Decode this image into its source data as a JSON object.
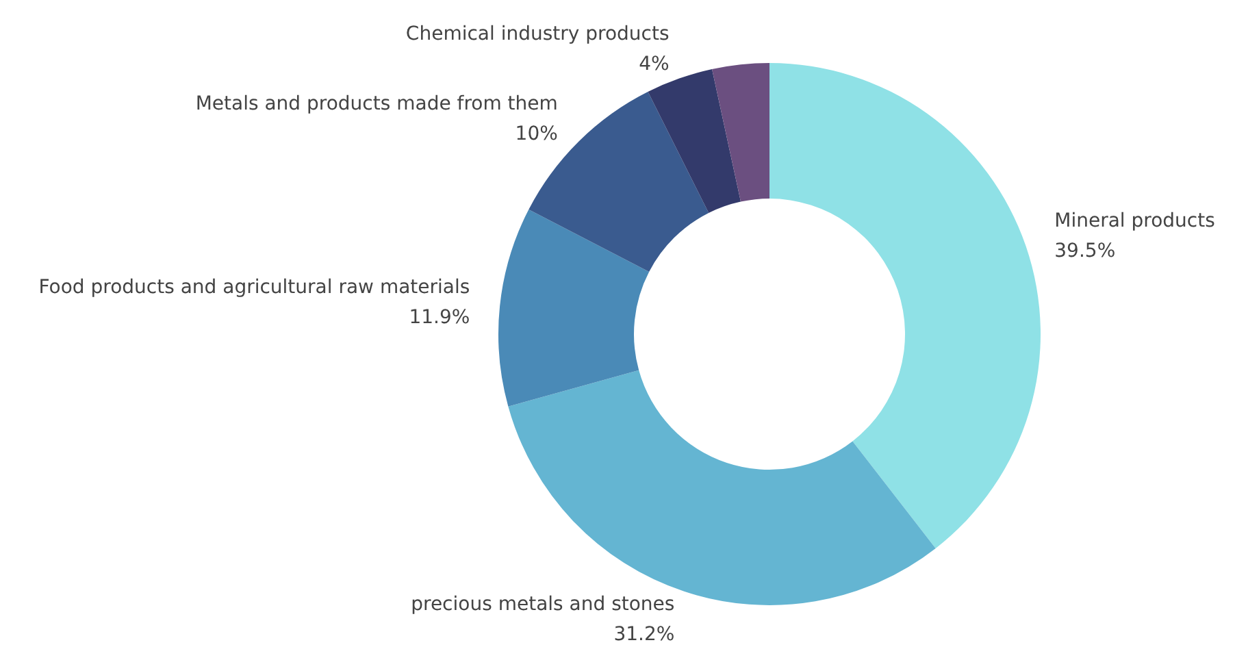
{
  "chart_data": {
    "type": "donut",
    "categories": [
      "Mineral products",
      "precious metals and stones",
      "Food products and agricultural raw materials",
      "Metals and products made from them",
      "Chemical industry products",
      null
    ],
    "values": [
      39.5,
      31.2,
      11.9,
      10,
      4,
      3.4
    ],
    "value_labels": [
      "39.5%",
      "31.2%",
      "11.9%",
      "10%",
      "4%",
      null
    ],
    "colors": [
      "#8fe1e6",
      "#64b5d2",
      "#4a8ab7",
      "#3a5b8f",
      "#333a6b",
      "#6b4f80"
    ],
    "legend": false
  }
}
